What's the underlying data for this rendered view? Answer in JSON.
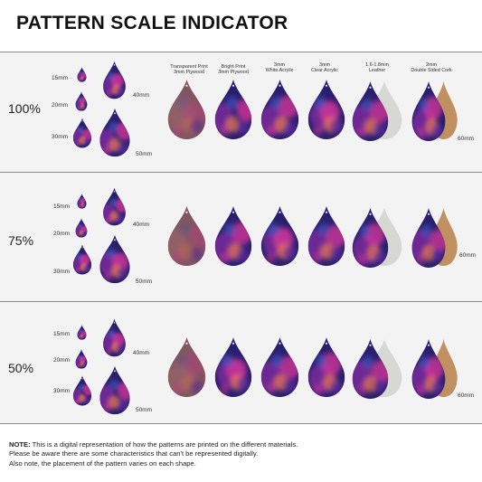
{
  "title": "PATTERN SCALE INDICATOR",
  "materials": [
    {
      "line1": "Transparent Print",
      "line2": "3mm Plywood"
    },
    {
      "line1": "Bright Print",
      "line2": "3mm Plywood"
    },
    {
      "line1": "3mm",
      "line2": "White Acrylic"
    },
    {
      "line1": "3mm",
      "line2": "Clear Acrylic"
    },
    {
      "line1": "1.6-1.8mm",
      "line2": "Leather"
    },
    {
      "line1": "2mm",
      "line2": "Double Sided Cork"
    }
  ],
  "sizes": {
    "s15": "15mm",
    "s20": "20mm",
    "s30": "30mm",
    "s40": "40mm",
    "s50": "50mm",
    "s60": "60mm"
  },
  "sections": [
    {
      "scale": "100%",
      "scale_fraction": 1.0
    },
    {
      "scale": "75%",
      "scale_fraction": 0.75
    },
    {
      "scale": "50%",
      "scale_fraction": 0.5
    }
  ],
  "note": {
    "label": "NOTE:",
    "line1": " This is a digital representation of how the patterns are printed on the different materials.",
    "line2": "Please be aware there are some characteristics that can't be represented digitally.",
    "line3": "Also note, the placement of the pattern varies on each shape."
  },
  "colors": {
    "galaxy_deep": "#2a1f6e",
    "galaxy_purple": "#7a2a9a",
    "galaxy_magenta": "#d8369a",
    "galaxy_orange": "#f07a4a",
    "plywood_muted": "#8a5a6a",
    "leather_back": "#d8d8d2",
    "cork_back": "#c09060",
    "section_bg": "#f3f3f3"
  }
}
